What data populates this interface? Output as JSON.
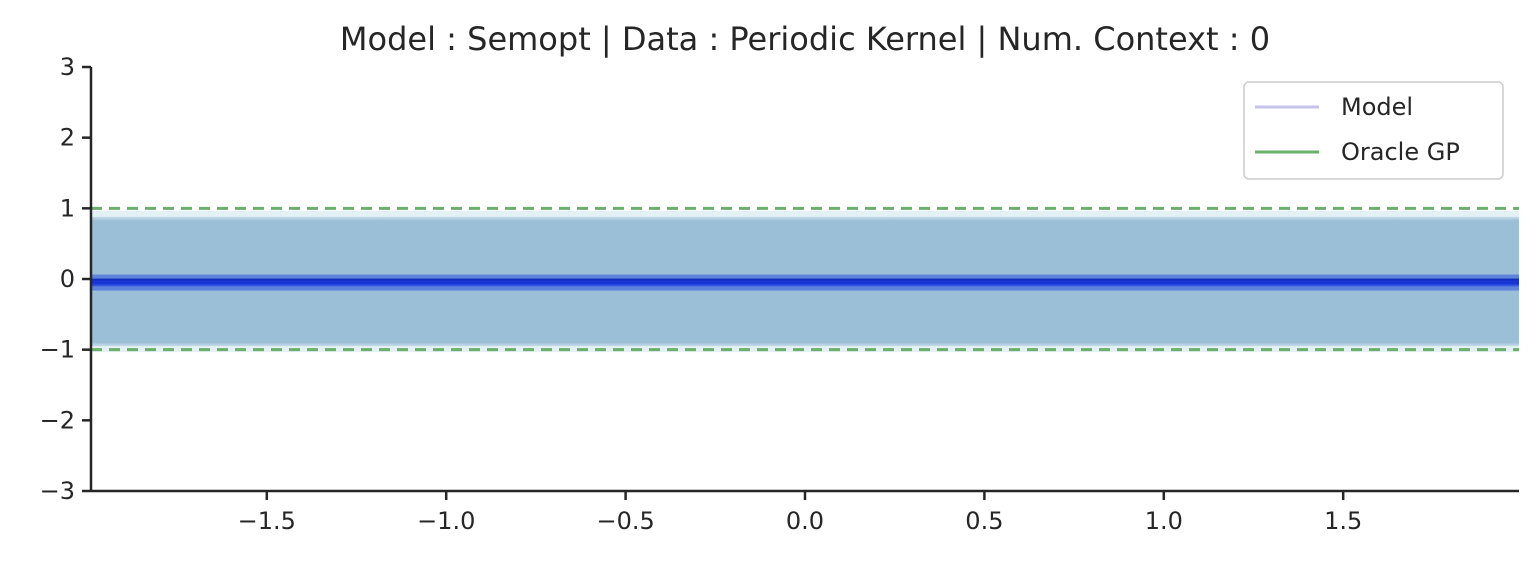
{
  "chart_data": {
    "type": "line",
    "title": "Model : Semopt | Data : Periodic Kernel | Num. Context : 0",
    "xlabel": "",
    "ylabel": "",
    "xlim": [
      -1.99,
      1.99
    ],
    "ylim": [
      -3,
      3
    ],
    "x_ticks": [
      -1.5,
      -1.0,
      -0.5,
      0.0,
      0.5,
      1.0,
      1.5
    ],
    "x_tick_labels": [
      "−1.5",
      "−1.0",
      "−0.5",
      "0.0",
      "0.5",
      "1.0",
      "1.5"
    ],
    "y_ticks": [
      -3,
      -2,
      -1,
      0,
      1,
      2,
      3
    ],
    "y_tick_labels": [
      "−3",
      "−2",
      "−1",
      "0",
      "1",
      "2",
      "3"
    ],
    "grid": false,
    "legend": {
      "placement": "top-right",
      "entries": [
        {
          "label": "Model",
          "color": "#c5c3ee"
        },
        {
          "label": "Oracle GP",
          "color": "#6aaf6a"
        }
      ]
    },
    "series": [
      {
        "name": "Model",
        "style": "band-with-mean",
        "x": [
          -1.99,
          1.99
        ],
        "mean": [
          -0.05,
          -0.05
        ],
        "lower": [
          -0.95,
          -0.95
        ],
        "upper": [
          0.88,
          0.88
        ],
        "mean_color": "#1a35d6",
        "band_color": "#8fb6d3"
      },
      {
        "name": "Oracle GP",
        "style": "dashed-bounds",
        "x": [
          -1.99,
          1.99
        ],
        "upper": [
          1.0,
          1.0
        ],
        "lower": [
          -1.0,
          -1.0
        ],
        "color": "#6aaf6a"
      }
    ]
  }
}
